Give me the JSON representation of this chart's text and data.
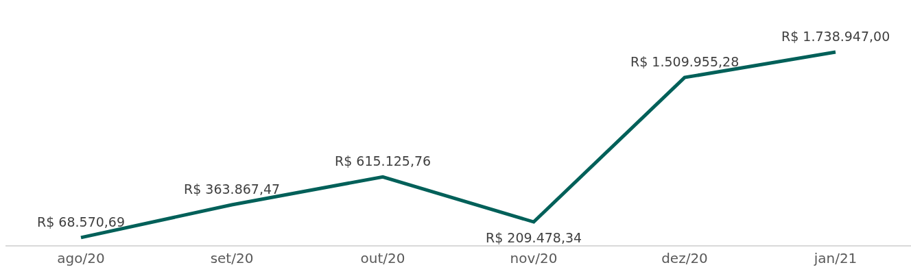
{
  "chart_data": {
    "type": "line",
    "categories": [
      "ago/20",
      "set/20",
      "out/20",
      "nov/20",
      "dez/20",
      "jan/21"
    ],
    "series": [
      {
        "color": "#006059",
        "values": [
          68570.69,
          363867.47,
          615125.76,
          209478.34,
          1509955.28,
          1738947.0
        ],
        "value_labels": [
          "R$ 68.570,69",
          "R$ 363.867,47",
          "R$ 615.125,76",
          "R$ 209.478,34",
          "R$ 1.509.955,28",
          "R$ 1.738.947,00"
        ]
      }
    ],
    "legend": false,
    "marker": "none",
    "line_style": "solid"
  }
}
